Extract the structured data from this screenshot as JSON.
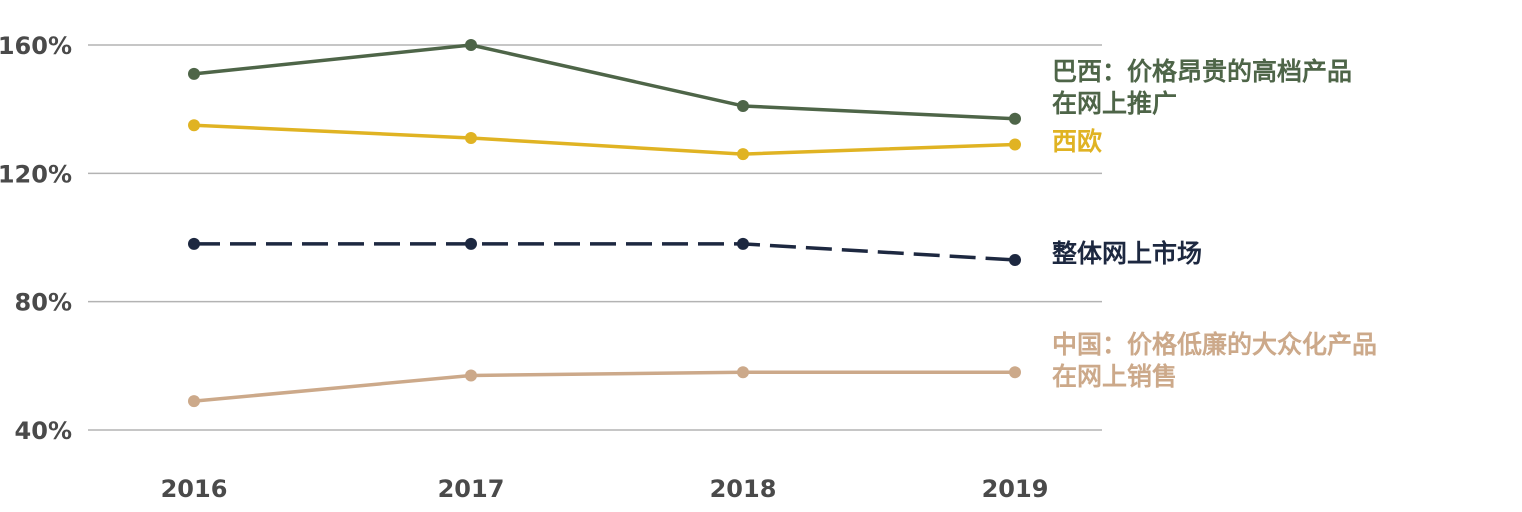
{
  "chart_data": {
    "type": "line",
    "x": [
      "2016",
      "2017",
      "2018",
      "2019"
    ],
    "ylim": [
      40,
      160
    ],
    "yticks": [
      40,
      80,
      120,
      160
    ],
    "ytick_labels": [
      "40%",
      "80%",
      "120%",
      "160%"
    ],
    "grid": true,
    "title": "",
    "xlabel": "",
    "ylabel": "",
    "series": [
      {
        "key": "brazil",
        "label_lines": [
          "巴西：价格昂贵的高档产品",
          "在网上推广"
        ],
        "values": [
          151,
          160,
          141,
          137
        ],
        "color": "#4e6548",
        "dashed": false
      },
      {
        "key": "west-europe",
        "label_lines": [
          "西欧"
        ],
        "values": [
          135,
          131,
          126,
          129
        ],
        "color": "#e0b323",
        "dashed": false
      },
      {
        "key": "overall",
        "label_lines": [
          "整体网上市场"
        ],
        "values": [
          98,
          98,
          98,
          93
        ],
        "color": "#1d2840",
        "dashed": true
      },
      {
        "key": "china",
        "label_lines": [
          "中国：价格低廉的大众化产品",
          "在网上销售"
        ],
        "values": [
          49,
          57,
          58,
          58
        ],
        "color": "#cca98a",
        "dashed": false
      }
    ]
  }
}
